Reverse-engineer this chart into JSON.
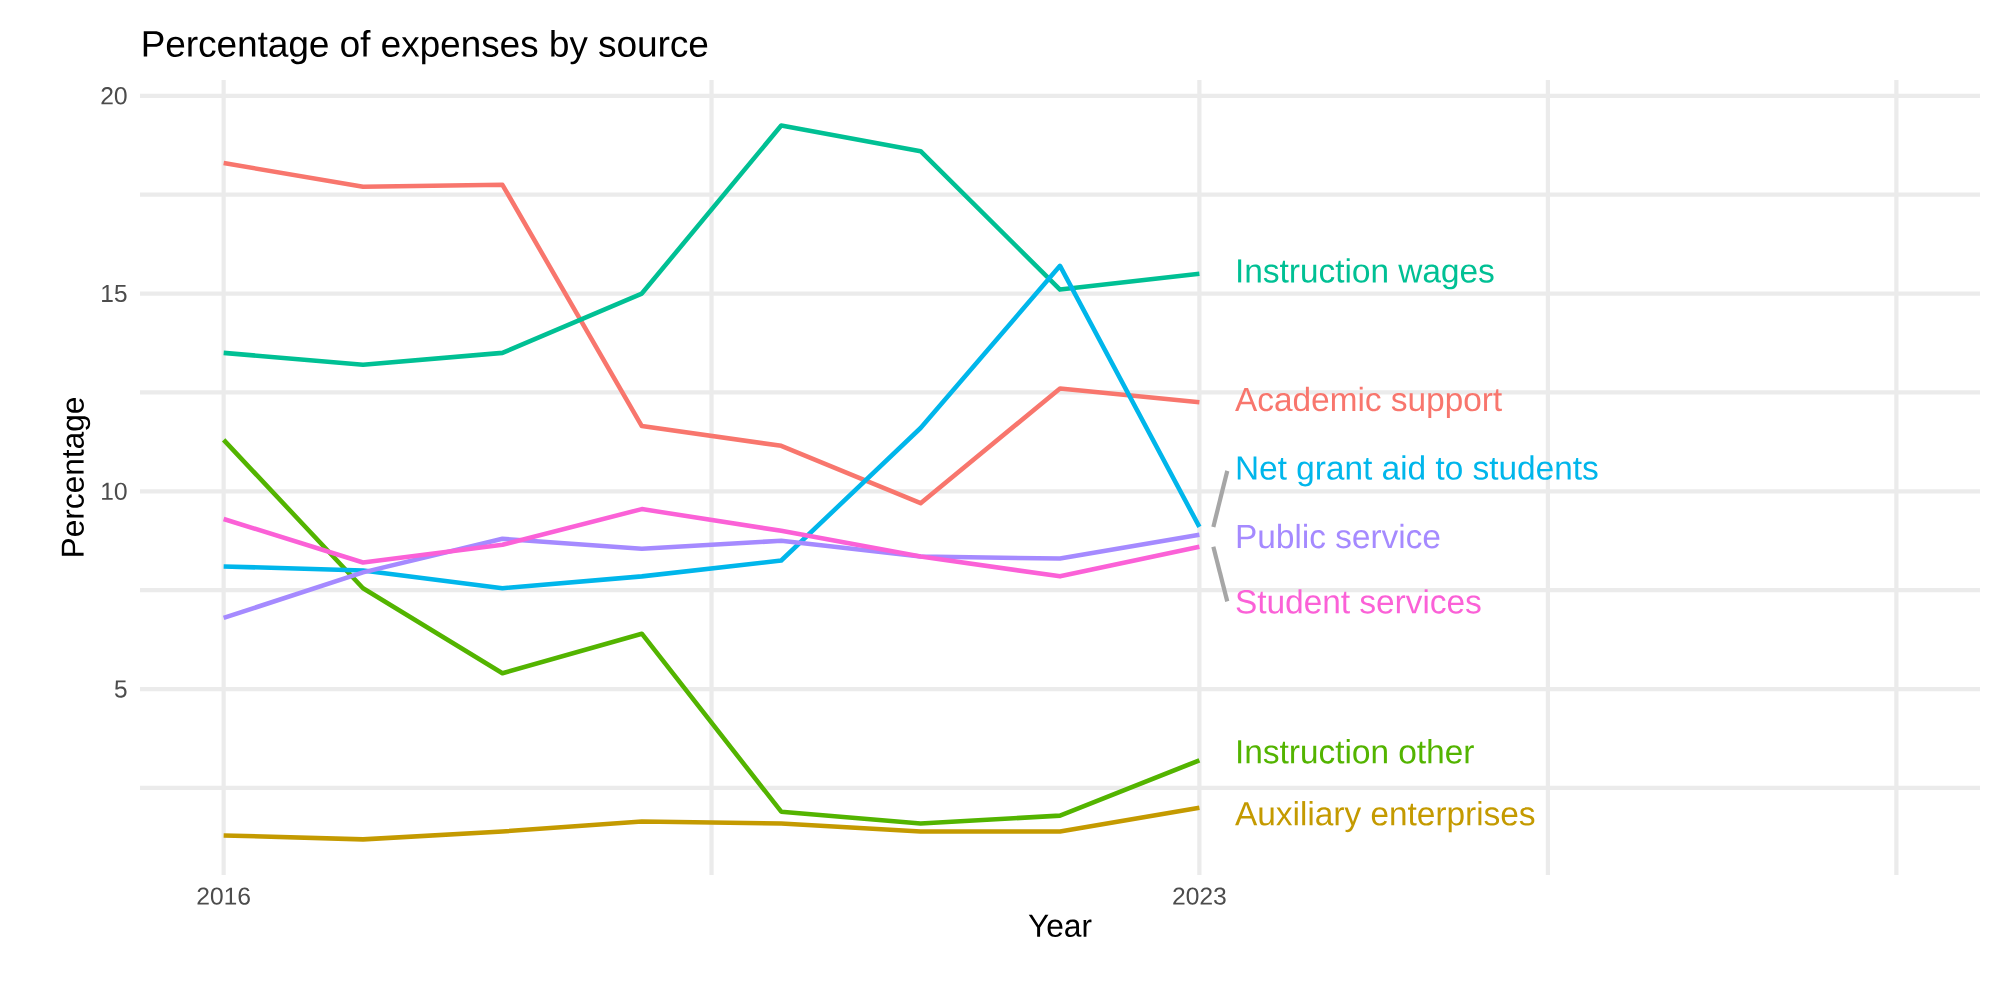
{
  "chart_data": {
    "type": "line",
    "title": "Percentage of expenses by source",
    "xlabel": "Year",
    "ylabel": "Percentage",
    "x": [
      2016,
      2017,
      2018,
      2019,
      2020,
      2021,
      2022,
      2023
    ],
    "series": [
      {
        "name": "Academic support",
        "color": "#f8766d",
        "values": [
          18.3,
          17.7,
          17.75,
          11.65,
          11.15,
          9.7,
          12.6,
          12.25
        ]
      },
      {
        "name": "Auxiliary enterprises",
        "color": "#c49a00",
        "values": [
          1.3,
          1.2,
          1.4,
          1.65,
          1.6,
          1.4,
          1.4,
          2.0
        ]
      },
      {
        "name": "Instruction other",
        "color": "#53b400",
        "values": [
          11.3,
          7.55,
          5.4,
          6.4,
          1.9,
          1.6,
          1.8,
          3.2
        ]
      },
      {
        "name": "Instruction wages",
        "color": "#00c094",
        "values": [
          13.5,
          13.2,
          13.5,
          15.0,
          19.25,
          18.6,
          15.1,
          15.5
        ]
      },
      {
        "name": "Net grant aid to students",
        "color": "#00b6eb",
        "values": [
          8.1,
          8.0,
          7.55,
          7.85,
          8.25,
          11.6,
          15.7,
          9.1
        ]
      },
      {
        "name": "Public service",
        "color": "#a58aff",
        "values": [
          6.8,
          7.95,
          8.8,
          8.55,
          8.75,
          8.35,
          8.3,
          8.9
        ]
      },
      {
        "name": "Student services",
        "color": "#fb61d7",
        "values": [
          9.3,
          8.2,
          8.65,
          9.55,
          9.0,
          8.35,
          7.85,
          8.6
        ]
      }
    ],
    "xlim": [
      2015.4,
      2028.6
    ],
    "xticks": [
      2016,
      {
        "value": 2019.5,
        "label": null
      },
      2023,
      {
        "value": 2025.5,
        "label": null
      },
      {
        "value": 2028,
        "label": null
      }
    ],
    "ylim": [
      0.3,
      20.4
    ],
    "yticks": [
      {
        "value": 2.5,
        "label": null
      },
      5,
      {
        "value": 7.5,
        "label": null
      },
      10,
      {
        "value": 12.5,
        "label": null
      },
      15,
      {
        "value": 17.5,
        "label": null
      },
      20
    ],
    "grid": true,
    "line_style": "solid",
    "marker": "none"
  }
}
